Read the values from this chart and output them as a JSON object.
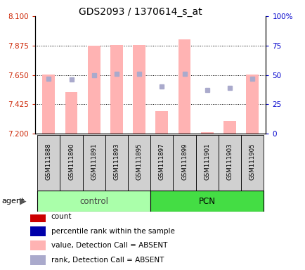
{
  "title": "GDS2093 / 1370614_s_at",
  "samples": [
    "GSM111888",
    "GSM111890",
    "GSM111891",
    "GSM111893",
    "GSM111895",
    "GSM111897",
    "GSM111899",
    "GSM111901",
    "GSM111903",
    "GSM111905"
  ],
  "groups": [
    "control",
    "control",
    "control",
    "control",
    "control",
    "PCN",
    "PCN",
    "PCN",
    "PCN",
    "PCN"
  ],
  "bar_heights": [
    7.655,
    7.52,
    7.875,
    7.878,
    7.882,
    7.375,
    7.92,
    7.21,
    7.295,
    7.655
  ],
  "rank_values": [
    47,
    46,
    50,
    51,
    51,
    40,
    51,
    37,
    39,
    47
  ],
  "ylim_left": [
    7.2,
    8.1
  ],
  "ylim_right": [
    0,
    100
  ],
  "yticks_left": [
    7.2,
    7.425,
    7.65,
    7.875,
    8.1
  ],
  "yticks_right": [
    0,
    25,
    50,
    75,
    100
  ],
  "bar_color": "#ffb3b3",
  "rank_color": "#aaaacc",
  "control_color": "#aaffaa",
  "pcn_color": "#44dd44",
  "tick_color_left": "#cc2200",
  "tick_color_right": "#0000cc",
  "bar_width": 0.55,
  "legend_items": [
    {
      "color": "#cc0000",
      "label": "count"
    },
    {
      "color": "#0000aa",
      "label": "percentile rank within the sample"
    },
    {
      "color": "#ffb3b3",
      "label": "value, Detection Call = ABSENT"
    },
    {
      "color": "#aaaacc",
      "label": "rank, Detection Call = ABSENT"
    }
  ]
}
